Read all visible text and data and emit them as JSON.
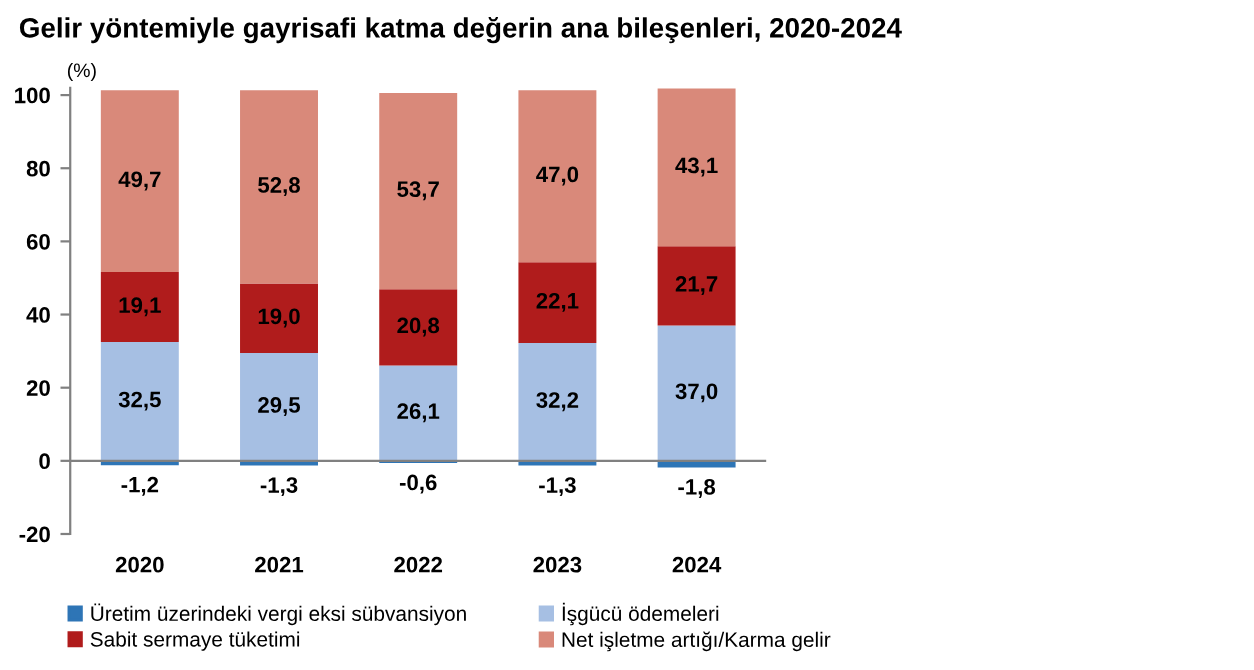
{
  "chart_data": {
    "type": "bar",
    "title": "Gelir yöntemiyle gayrisafi katma değerin ana bileşenleri, 2020-2024",
    "ylabel": "(%)",
    "categories": [
      "2020",
      "2021",
      "2022",
      "2023",
      "2024"
    ],
    "stacked": true,
    "series": [
      {
        "name": "Üretim üzerindeki vergi eksi sübvansiyon",
        "color": "#2e75b6",
        "values": [
          -1.2,
          -1.3,
          -0.6,
          -1.3,
          -1.8
        ],
        "value_labels": [
          "-1,2",
          "-1,3",
          "-0,6",
          "-1,3",
          "-1,8"
        ]
      },
      {
        "name": "İşgücü ödemeleri",
        "color": "#a6bfe3",
        "values": [
          32.5,
          29.5,
          26.1,
          32.2,
          37.0
        ],
        "value_labels": [
          "32,5",
          "29,5",
          "26,1",
          "32,2",
          "37,0"
        ]
      },
      {
        "name": "Sabit sermaye tüketimi",
        "color": "#b01c1c",
        "values": [
          19.1,
          19.0,
          20.8,
          22.1,
          21.7
        ],
        "value_labels": [
          "19,1",
          "19,0",
          "20,8",
          "22,1",
          "21,7"
        ]
      },
      {
        "name": "Net işletme artığı/Karma gelir",
        "color": "#d9897a",
        "values": [
          49.7,
          52.8,
          53.7,
          47.0,
          43.1
        ],
        "value_labels": [
          "49,7",
          "52,8",
          "53,7",
          "47,0",
          "43,1"
        ]
      }
    ],
    "ylim": [
      -20,
      102
    ],
    "yticks": [
      -20,
      0,
      20,
      40,
      60,
      80,
      100
    ],
    "grid": false,
    "ref_lines": [
      {
        "axis": "y",
        "value": 0,
        "color": "#808080"
      }
    ],
    "legend": "bottom"
  }
}
